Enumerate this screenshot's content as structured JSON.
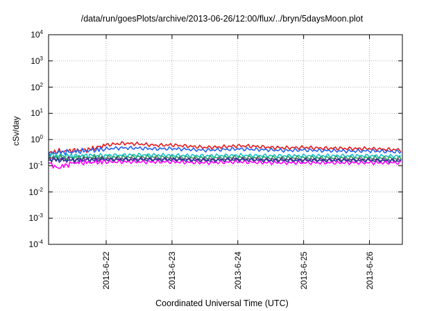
{
  "chart_data": {
    "type": "line",
    "title": "/data/run/goesPlots/archive/2013-06-26/12:00/flux/../bryn/5daysMoon.plot",
    "xlabel": "Coordinated Universal Time (UTC)",
    "ylabel": "cSv/day",
    "yscale": "log",
    "ylim": [
      0.0001,
      10000
    ],
    "yticks": [
      {
        "base": "10",
        "exp": "4"
      },
      {
        "base": "10",
        "exp": "3"
      },
      {
        "base": "10",
        "exp": "2"
      },
      {
        "base": "10",
        "exp": "1"
      },
      {
        "base": "10",
        "exp": "0"
      },
      {
        "base": "10",
        "exp": "-1"
      },
      {
        "base": "10",
        "exp": "-2"
      },
      {
        "base": "10",
        "exp": "-3"
      },
      {
        "base": "10",
        "exp": "-4"
      }
    ],
    "xlim": [
      "2013-06-21 03:00",
      "2013-06-26 12:00"
    ],
    "xticks": [
      "2013-6-22",
      "2013-6-23",
      "2013-6-24",
      "2013-6-25",
      "2013-6-26"
    ],
    "grid": true,
    "series": [
      {
        "color": "#e41a1c",
        "x": [
          "2013-06-21 03:00",
          "2013-06-21 06:00",
          "2013-06-21 12:00",
          "2013-06-21 18:00",
          "2013-06-22 00:00",
          "2013-06-22 06:00",
          "2013-06-22 12:00",
          "2013-06-22 18:00",
          "2013-06-23 00:00",
          "2013-06-23 06:00",
          "2013-06-23 12:00",
          "2013-06-23 18:00",
          "2013-06-24 00:00",
          "2013-06-24 06:00",
          "2013-06-24 12:00",
          "2013-06-24 18:00",
          "2013-06-25 00:00",
          "2013-06-25 06:00",
          "2013-06-25 12:00",
          "2013-06-25 18:00",
          "2013-06-26 00:00",
          "2013-06-26 06:00",
          "2013-06-26 12:00"
        ],
        "y": [
          0.3,
          0.35,
          0.38,
          0.42,
          0.62,
          0.72,
          0.68,
          0.6,
          0.62,
          0.56,
          0.5,
          0.52,
          0.58,
          0.55,
          0.5,
          0.48,
          0.5,
          0.47,
          0.46,
          0.45,
          0.45,
          0.42,
          0.4
        ]
      },
      {
        "color": "#2563eb",
        "x": [
          "2013-06-21 03:00",
          "2013-06-21 06:00",
          "2013-06-21 12:00",
          "2013-06-21 18:00",
          "2013-06-22 00:00",
          "2013-06-22 06:00",
          "2013-06-22 12:00",
          "2013-06-22 18:00",
          "2013-06-23 00:00",
          "2013-06-23 06:00",
          "2013-06-23 12:00",
          "2013-06-23 18:00",
          "2013-06-24 00:00",
          "2013-06-24 06:00",
          "2013-06-24 12:00",
          "2013-06-24 18:00",
          "2013-06-25 00:00",
          "2013-06-25 06:00",
          "2013-06-25 12:00",
          "2013-06-25 18:00",
          "2013-06-26 00:00",
          "2013-06-26 06:00",
          "2013-06-26 12:00"
        ],
        "y": [
          0.28,
          0.32,
          0.34,
          0.38,
          0.44,
          0.48,
          0.47,
          0.44,
          0.45,
          0.42,
          0.39,
          0.41,
          0.44,
          0.42,
          0.4,
          0.38,
          0.4,
          0.38,
          0.37,
          0.36,
          0.37,
          0.35,
          0.34
        ]
      },
      {
        "color": "#16c0c9",
        "x": [
          "2013-06-21 03:00",
          "2013-06-21 12:00",
          "2013-06-22 00:00",
          "2013-06-22 12:00",
          "2013-06-23 00:00",
          "2013-06-23 12:00",
          "2013-06-24 00:00",
          "2013-06-24 12:00",
          "2013-06-25 00:00",
          "2013-06-25 12:00",
          "2013-06-26 00:00",
          "2013-06-26 12:00"
        ],
        "y": [
          0.25,
          0.24,
          0.25,
          0.26,
          0.25,
          0.24,
          0.25,
          0.24,
          0.24,
          0.24,
          0.24,
          0.23
        ]
      },
      {
        "color": "#2ca25f",
        "x": [
          "2013-06-21 03:00",
          "2013-06-21 12:00",
          "2013-06-22 00:00",
          "2013-06-22 12:00",
          "2013-06-23 00:00",
          "2013-06-23 12:00",
          "2013-06-24 00:00",
          "2013-06-24 12:00",
          "2013-06-25 00:00",
          "2013-06-25 12:00",
          "2013-06-26 00:00",
          "2013-06-26 12:00"
        ],
        "y": [
          0.21,
          0.2,
          0.21,
          0.22,
          0.21,
          0.2,
          0.21,
          0.2,
          0.2,
          0.2,
          0.2,
          0.19
        ]
      },
      {
        "color": "#7b2d8b",
        "x": [
          "2013-06-21 03:00",
          "2013-06-21 12:00",
          "2013-06-22 00:00",
          "2013-06-22 12:00",
          "2013-06-23 00:00",
          "2013-06-23 12:00",
          "2013-06-24 00:00",
          "2013-06-24 12:00",
          "2013-06-25 00:00",
          "2013-06-25 12:00",
          "2013-06-26 00:00",
          "2013-06-26 12:00"
        ],
        "y": [
          0.18,
          0.17,
          0.18,
          0.18,
          0.18,
          0.17,
          0.18,
          0.17,
          0.17,
          0.17,
          0.17,
          0.16
        ]
      },
      {
        "color": "#1f3a93",
        "x": [
          "2013-06-21 03:00",
          "2013-06-21 12:00",
          "2013-06-22 00:00",
          "2013-06-22 12:00",
          "2013-06-23 00:00",
          "2013-06-23 12:00",
          "2013-06-24 00:00",
          "2013-06-24 12:00",
          "2013-06-25 00:00",
          "2013-06-25 12:00",
          "2013-06-26 00:00",
          "2013-06-26 12:00"
        ],
        "y": [
          0.17,
          0.16,
          0.17,
          0.17,
          0.17,
          0.16,
          0.17,
          0.16,
          0.16,
          0.16,
          0.16,
          0.15
        ]
      },
      {
        "color": "#ff00ff",
        "x": [
          "2013-06-21 03:00",
          "2013-06-21 06:00",
          "2013-06-21 12:00",
          "2013-06-22 00:00",
          "2013-06-22 12:00",
          "2013-06-23 00:00",
          "2013-06-23 12:00",
          "2013-06-24 00:00",
          "2013-06-24 12:00",
          "2013-06-25 00:00",
          "2013-06-25 12:00",
          "2013-06-26 00:00",
          "2013-06-26 12:00"
        ],
        "y": [
          0.14,
          0.08,
          0.13,
          0.14,
          0.14,
          0.14,
          0.13,
          0.14,
          0.13,
          0.13,
          0.13,
          0.13,
          0.13
        ]
      }
    ]
  }
}
